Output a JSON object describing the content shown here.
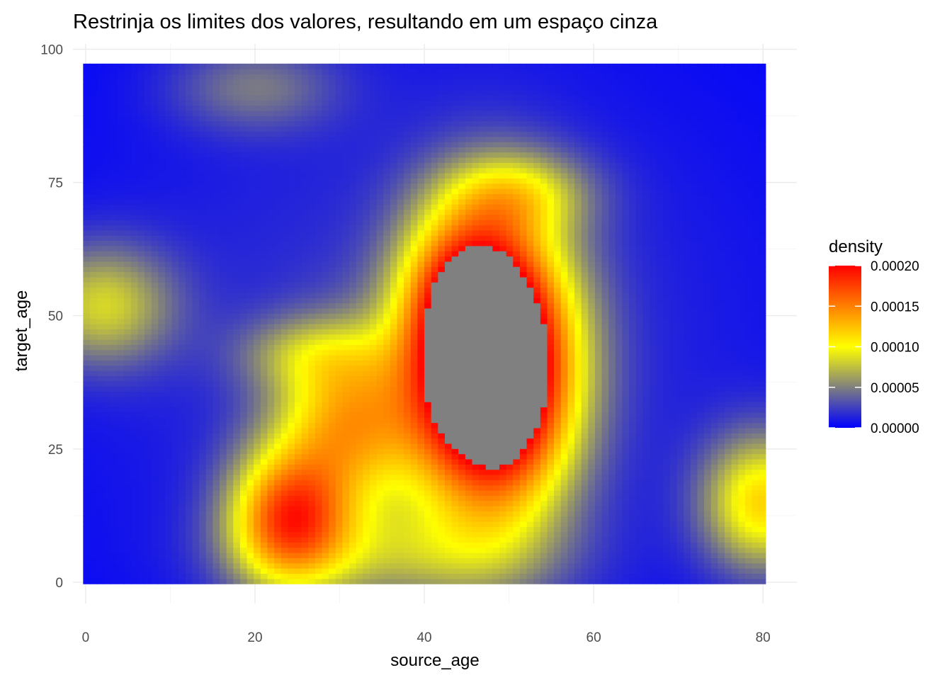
{
  "chart_data": {
    "type": "heatmap",
    "title": "Restrinja os limites dos valores, resultando em um espaço cinza",
    "xlabel": "source_age",
    "ylabel": "target_age",
    "xlim": [
      -1.5,
      84
    ],
    "ylim": [
      -4,
      101
    ],
    "raster_extent": {
      "x": [
        -0.3,
        80.3
      ],
      "y": [
        -0.3,
        97.3
      ]
    },
    "x_ticks": [
      0,
      20,
      40,
      60,
      80
    ],
    "x_tick_labels": [
      "0",
      "20",
      "40",
      "60",
      "80"
    ],
    "y_ticks": [
      0,
      25,
      50,
      75,
      100
    ],
    "y_tick_labels": [
      "0",
      "25",
      "50",
      "75",
      "100"
    ],
    "grid": true,
    "legend": {
      "title": "density",
      "placement": "right",
      "limits": [
        0,
        0.0002
      ],
      "breaks": [
        0,
        5e-05,
        0.0001,
        0.00015,
        0.0002
      ],
      "labels": [
        "0.00000",
        "0.00005",
        "0.00010",
        "0.00015",
        "0.00020"
      ],
      "colors": [
        "#0000ff",
        "#ffff00",
        "#ff0000"
      ],
      "out_of_range_color": "#808080"
    },
    "density_components": [
      {
        "x": 48,
        "y": 40,
        "sx": 6.5,
        "sy": 18,
        "w": 0.000305
      },
      {
        "x": 44,
        "y": 55,
        "sx": 5,
        "sy": 10,
        "w": 7e-05
      },
      {
        "x": 51,
        "y": 73,
        "sx": 6,
        "sy": 5.5,
        "w": 6e-05
      },
      {
        "x": 24,
        "y": 12,
        "sx": 5,
        "sy": 9,
        "w": 0.00015
      },
      {
        "x": 31,
        "y": 30,
        "sx": 6,
        "sy": 11,
        "w": 0.00011
      },
      {
        "x": 26,
        "y": 43,
        "sx": 6,
        "sy": 5,
        "w": 4e-05
      },
      {
        "x": 37,
        "y": 5,
        "sx": 12,
        "sy": 7,
        "w": 5e-05
      },
      {
        "x": 2,
        "y": 52,
        "sx": 6,
        "sy": 8,
        "w": 7.5e-05
      },
      {
        "x": 80,
        "y": 15,
        "sx": 5,
        "sy": 9,
        "w": 0.00011
      },
      {
        "x": 20,
        "y": 93,
        "sx": 7,
        "sy": 6,
        "w": 4e-05
      },
      {
        "x": 40,
        "y": 45,
        "sx": 30,
        "sy": 40,
        "w": 2e-05
      }
    ]
  }
}
